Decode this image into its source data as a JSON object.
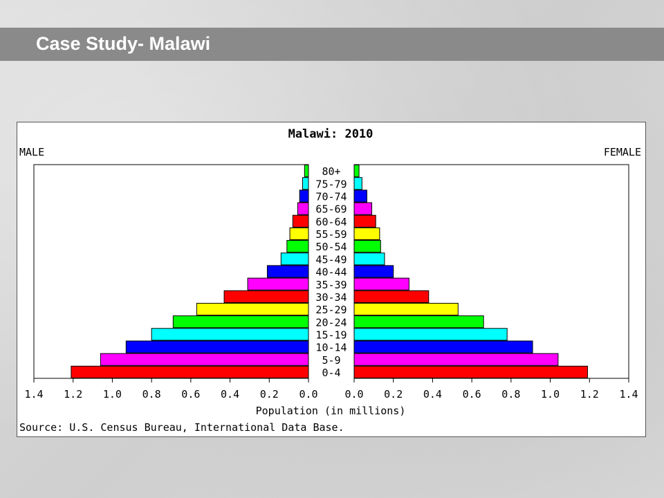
{
  "slide": {
    "title": "Case Study- Malawi"
  },
  "colors": {
    "title_bar": "#8a8a8a",
    "bar_palette": [
      "#ff0000",
      "#ff00ff",
      "#0000ff",
      "#00ffff",
      "#00ff00",
      "#ffff00"
    ]
  },
  "chart_data": {
    "type": "bar",
    "orientation": "horizontal-population-pyramid",
    "title": "Malawi: 2010",
    "left_label": "MALE",
    "right_label": "FEMALE",
    "xlabel": "Population (in millions)",
    "source": "Source: U.S. Census Bureau, International Data Base.",
    "xlim": [
      0,
      1.4
    ],
    "x_ticks": [
      "1.4",
      "1.2",
      "1.0",
      "0.8",
      "0.6",
      "0.4",
      "0.2",
      "0.0"
    ],
    "x_ticks_right": [
      "0.0",
      "0.2",
      "0.4",
      "0.6",
      "0.8",
      "1.0",
      "1.2",
      "1.4"
    ],
    "categories": [
      "0-4",
      "5-9",
      "10-14",
      "15-19",
      "20-24",
      "25-29",
      "30-34",
      "35-39",
      "40-44",
      "45-49",
      "50-54",
      "55-59",
      "60-64",
      "65-69",
      "70-74",
      "75-79",
      "80+"
    ],
    "series": [
      {
        "name": "MALE",
        "values": [
          1.21,
          1.06,
          0.93,
          0.8,
          0.69,
          0.57,
          0.43,
          0.31,
          0.21,
          0.14,
          0.11,
          0.095,
          0.08,
          0.055,
          0.045,
          0.03,
          0.02
        ]
      },
      {
        "name": "FEMALE",
        "values": [
          1.19,
          1.04,
          0.91,
          0.78,
          0.66,
          0.53,
          0.38,
          0.28,
          0.2,
          0.155,
          0.135,
          0.13,
          0.11,
          0.09,
          0.065,
          0.04,
          0.025
        ]
      }
    ]
  }
}
